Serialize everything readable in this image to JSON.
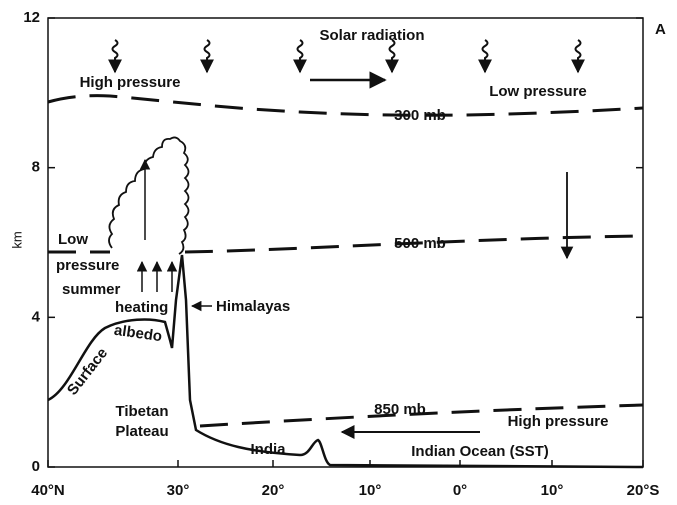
{
  "panel_label": "A",
  "y_axis": {
    "label": "km",
    "ticks": [
      "0",
      "4",
      "8",
      "12"
    ]
  },
  "x_axis": {
    "ticks": [
      "40°N",
      "30°",
      "20°",
      "10°",
      "0°",
      "10°",
      "20°S"
    ]
  },
  "labels": {
    "solar_radiation": "Solar radiation",
    "high_pressure_upper": "High pressure",
    "low_pressure_upper": "Low pressure",
    "mb300": "300 mb",
    "low": "Low",
    "pressure": "pressure",
    "mb500": "500 mb",
    "summer": "summer",
    "heating": "heating",
    "himalayas": "Himalayas",
    "surface": "Surface",
    "albedo": "albedo",
    "tibetan": "Tibetan",
    "plateau": "Plateau",
    "india": "India",
    "mb850": "850 mb",
    "high_pressure_lower": "High pressure",
    "indian_ocean": "Indian Ocean (SST)"
  }
}
